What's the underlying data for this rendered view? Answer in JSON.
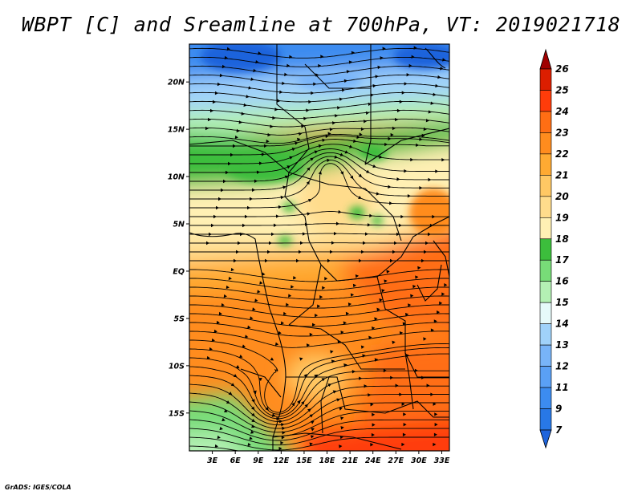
{
  "title": "WBPT [C] and Sreamline at 700hPa, VT: 2019021718",
  "footer": "GrADS: IGES/COLA",
  "map": {
    "lat_range": [
      -19,
      24
    ],
    "lon_range": [
      0,
      34
    ],
    "lat_ticks": [
      {
        "value": 20,
        "label": "20N"
      },
      {
        "value": 15,
        "label": "15N"
      },
      {
        "value": 10,
        "label": "10N"
      },
      {
        "value": 5,
        "label": "5N"
      },
      {
        "value": 0,
        "label": "EQ"
      },
      {
        "value": -5,
        "label": "5S"
      },
      {
        "value": -10,
        "label": "10S"
      },
      {
        "value": -15,
        "label": "15S"
      }
    ],
    "lon_ticks": [
      {
        "value": 3,
        "label": "3E"
      },
      {
        "value": 6,
        "label": "6E"
      },
      {
        "value": 9,
        "label": "9E"
      },
      {
        "value": 12,
        "label": "12E"
      },
      {
        "value": 15,
        "label": "15E"
      },
      {
        "value": 18,
        "label": "18E"
      },
      {
        "value": 21,
        "label": "21E"
      },
      {
        "value": 24,
        "label": "24E"
      },
      {
        "value": 27,
        "label": "27E"
      },
      {
        "value": 30,
        "label": "30E"
      },
      {
        "value": 33,
        "label": "33E"
      }
    ]
  },
  "colorbar": {
    "levels": [
      {
        "label": "7",
        "color": "#1e64dc"
      },
      {
        "label": "9",
        "color": "#2878e6"
      },
      {
        "label": "11",
        "color": "#3c8cf0"
      },
      {
        "label": "12",
        "color": "#5aa0f5"
      },
      {
        "label": "13",
        "color": "#78b4f8"
      },
      {
        "label": "14",
        "color": "#a0d2fa"
      },
      {
        "label": "15",
        "color": "#e6fafa"
      },
      {
        "label": "16",
        "color": "#b4f0b4"
      },
      {
        "label": "17",
        "color": "#78dc78"
      },
      {
        "label": "18",
        "color": "#3cbe3c"
      },
      {
        "label": "19",
        "color": "#fff0b4"
      },
      {
        "label": "20",
        "color": "#ffdc8c"
      },
      {
        "label": "21",
        "color": "#ffc864"
      },
      {
        "label": "22",
        "color": "#ffaa32"
      },
      {
        "label": "23",
        "color": "#ff8c1e"
      },
      {
        "label": "24",
        "color": "#ff6e14"
      },
      {
        "label": "25",
        "color": "#ff3c0a"
      },
      {
        "label": "26",
        "color": "#dc1e00"
      }
    ],
    "top_color": "#a00000",
    "bottom_color": "#1e64dc"
  }
}
